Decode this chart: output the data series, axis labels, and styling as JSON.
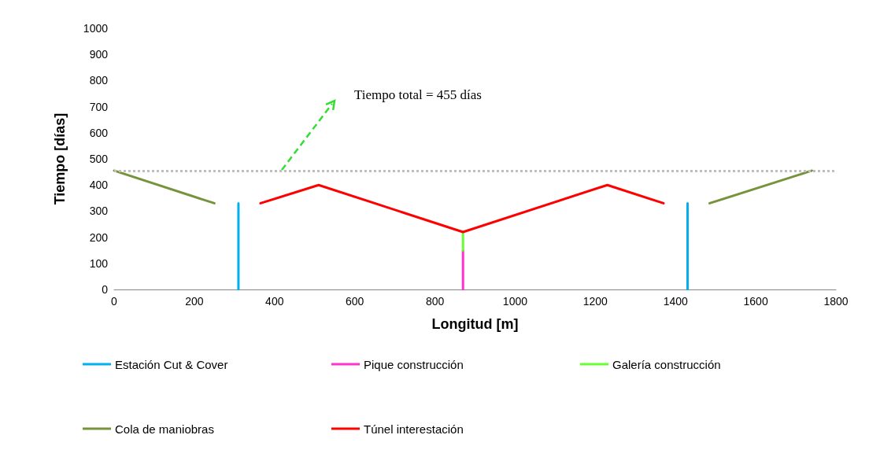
{
  "chart_data": {
    "type": "line",
    "xlabel": "Longitud [m]",
    "ylabel": "Tiempo [días]",
    "xlim": [
      0,
      1800
    ],
    "xticks": [
      0,
      200,
      400,
      600,
      800,
      1000,
      1200,
      1400,
      1600,
      1800
    ],
    "ylim": [
      0,
      1000
    ],
    "yticks": [
      0,
      100,
      200,
      300,
      400,
      500,
      600,
      700,
      800,
      900,
      1000
    ],
    "grid": false,
    "legend": "bottom",
    "marker": "none",
    "line_style": "solid",
    "series": [
      {
        "name": "Estación Cut & Cover",
        "color": "#00b0f0",
        "x": [
          310,
          310,
          null,
          1430,
          1430
        ],
        "values": [
          0,
          330,
          null,
          0,
          330
        ]
      },
      {
        "name": "Pique construcción",
        "color": "#ff33cc",
        "x": [
          870,
          870
        ],
        "values": [
          0,
          150
        ]
      },
      {
        "name": "Galería construcción",
        "color": "#66ff33",
        "x": [
          870,
          870
        ],
        "values": [
          150,
          220
        ]
      },
      {
        "name": "Cola de maniobras",
        "color": "#77933c",
        "x": [
          0,
          250,
          null,
          1485,
          1740
        ],
        "values": [
          455,
          330,
          null,
          330,
          455
        ]
      },
      {
        "name": "Túnel interestación",
        "color": "#ff0000",
        "x": [
          365,
          510,
          870,
          1230,
          1370
        ],
        "values": [
          330,
          400,
          220,
          400,
          330
        ]
      }
    ],
    "ref_lines": [
      {
        "axis": "y",
        "value": 455,
        "label": null,
        "color": "#bfbfbf",
        "line_style": "dotted"
      }
    ],
    "annotations": [
      "Tiempo total = 455 días"
    ]
  }
}
